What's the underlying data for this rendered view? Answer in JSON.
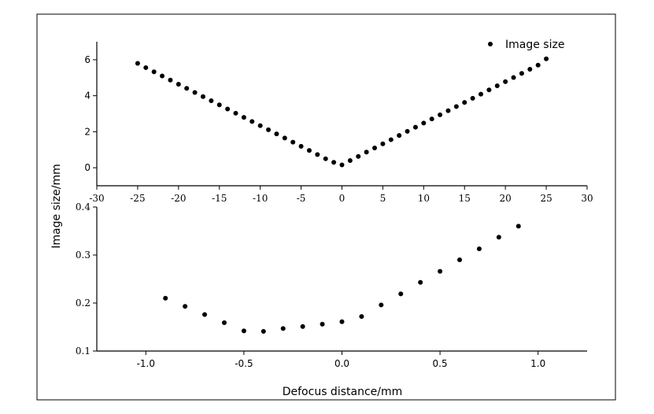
{
  "figure": {
    "ylabel": "Image size/mm",
    "xlabel": "Defocus distance/mm"
  },
  "chart_data": [
    {
      "type": "scatter",
      "panel": "top",
      "legend": {
        "label": "Image size",
        "placement": "top-right"
      },
      "xlim": [
        -30,
        30
      ],
      "ylim": [
        -1,
        7
      ],
      "xticks": [
        -30,
        -25,
        -20,
        -15,
        -10,
        -5,
        0,
        5,
        10,
        15,
        20,
        25,
        30
      ],
      "xtick_labels": [
        "-30",
        "-25",
        "-20",
        "-15",
        "-10",
        "-5",
        "0",
        "5",
        "10",
        "15",
        "20",
        "25",
        "30"
      ],
      "yticks": [
        0,
        2,
        4,
        6
      ],
      "ytick_labels": [
        "0",
        "2",
        "4",
        "6"
      ],
      "series": [
        {
          "name": "Image size",
          "x": [
            -25,
            -24,
            -23,
            -22,
            -21,
            -20,
            -19,
            -18,
            -17,
            -16,
            -15,
            -14,
            -13,
            -12,
            -11,
            -10,
            -9,
            -8,
            -7,
            -6,
            -5,
            -4,
            -3,
            -2,
            -1,
            0,
            1,
            2,
            3,
            4,
            5,
            6,
            7,
            8,
            9,
            10,
            11,
            12,
            13,
            14,
            15,
            16,
            17,
            18,
            19,
            20,
            21,
            22,
            23,
            24,
            25
          ],
          "y": [
            5.8,
            5.56,
            5.33,
            5.1,
            4.87,
            4.64,
            4.41,
            4.18,
            3.95,
            3.72,
            3.49,
            3.26,
            3.03,
            2.8,
            2.57,
            2.34,
            2.11,
            1.88,
            1.65,
            1.42,
            1.19,
            0.96,
            0.73,
            0.5,
            0.3,
            0.16,
            0.4,
            0.63,
            0.87,
            1.1,
            1.33,
            1.56,
            1.79,
            2.02,
            2.25,
            2.48,
            2.71,
            2.94,
            3.17,
            3.4,
            3.63,
            3.86,
            4.09,
            4.32,
            4.55,
            4.78,
            5.01,
            5.24,
            5.47,
            5.7,
            6.05
          ]
        }
      ]
    },
    {
      "type": "scatter",
      "panel": "bottom",
      "xlim": [
        -1.25,
        1.25
      ],
      "ylim": [
        0.1,
        0.4
      ],
      "xticks": [
        -1.0,
        -0.5,
        0.0,
        0.5,
        1.0
      ],
      "xtick_labels": [
        "-1.0",
        "-0.5",
        "0.0",
        "0.5",
        "1.0"
      ],
      "yticks": [
        0.1,
        0.2,
        0.3,
        0.4
      ],
      "ytick_labels": [
        "0.1",
        "0.2",
        "0.3",
        "0.4"
      ],
      "series": [
        {
          "name": "Image size",
          "x": [
            -0.9,
            -0.8,
            -0.7,
            -0.6,
            -0.5,
            -0.4,
            -0.3,
            -0.2,
            -0.1,
            0.0,
            0.1,
            0.2,
            0.3,
            0.4,
            0.5,
            0.6,
            0.7,
            0.8,
            0.9
          ],
          "y": [
            0.21,
            0.193,
            0.176,
            0.159,
            0.142,
            0.141,
            0.147,
            0.151,
            0.156,
            0.161,
            0.172,
            0.196,
            0.219,
            0.243,
            0.266,
            0.29,
            0.313,
            0.337,
            0.36
          ]
        }
      ]
    }
  ]
}
